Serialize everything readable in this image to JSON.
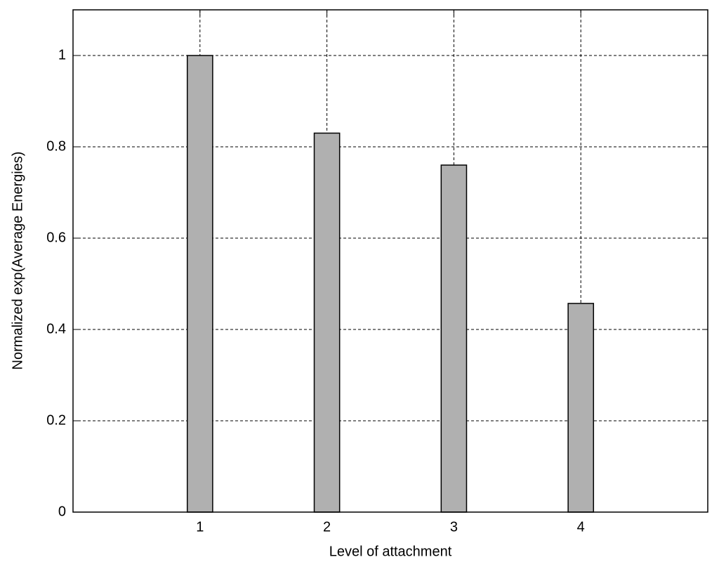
{
  "chart_data": {
    "type": "bar",
    "x_label": "Level of attachment",
    "y_label": "Normalized exp(Average Energies)",
    "x": [
      1,
      2,
      3,
      4
    ],
    "values": [
      1.0,
      0.83,
      0.76,
      0.457
    ],
    "color": "#b0b0b0",
    "xlim": [
      0,
      5
    ],
    "xticks": [
      1,
      2,
      3,
      4
    ],
    "ylim": [
      0,
      1.1
    ],
    "yticks": [
      0,
      0.2,
      0.4,
      0.6,
      0.8,
      1
    ],
    "grid": true
  }
}
